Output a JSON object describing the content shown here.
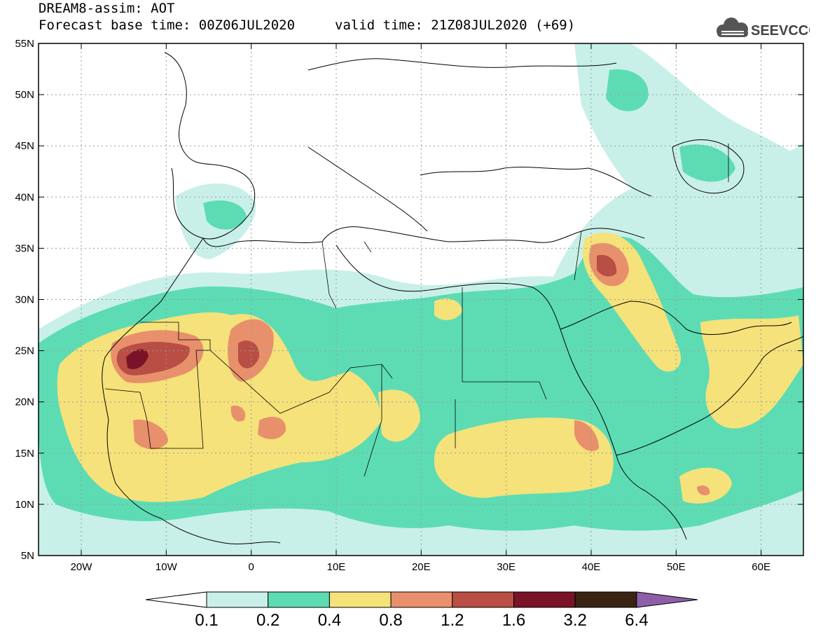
{
  "header": {
    "title": "DREAM8-assim: AOT",
    "base_time": "Forecast base time: 00Z06JUL2020",
    "valid_time": "valid time: 21Z08JUL2020 (+69)"
  },
  "logo": {
    "text": "SEEVCCC",
    "icon": "cloud-icon"
  },
  "map": {
    "lat_labels": [
      "55N",
      "50N",
      "45N",
      "40N",
      "35N",
      "30N",
      "25N",
      "20N",
      "15N",
      "10N",
      "5N"
    ],
    "lon_labels": [
      "20W",
      "10W",
      "0",
      "10E",
      "20E",
      "30E",
      "40E",
      "50E",
      "60E"
    ]
  },
  "colorbar": {
    "levels": [
      "0.1",
      "0.2",
      "0.4",
      "0.8",
      "1.2",
      "1.6",
      "3.2",
      "6.4"
    ],
    "colors": [
      "#ffffff",
      "#c8f0e8",
      "#5ddcb4",
      "#f5e27a",
      "#e8906c",
      "#b84e44",
      "#7a1228",
      "#3a2414",
      "#8e5fa8"
    ]
  }
}
